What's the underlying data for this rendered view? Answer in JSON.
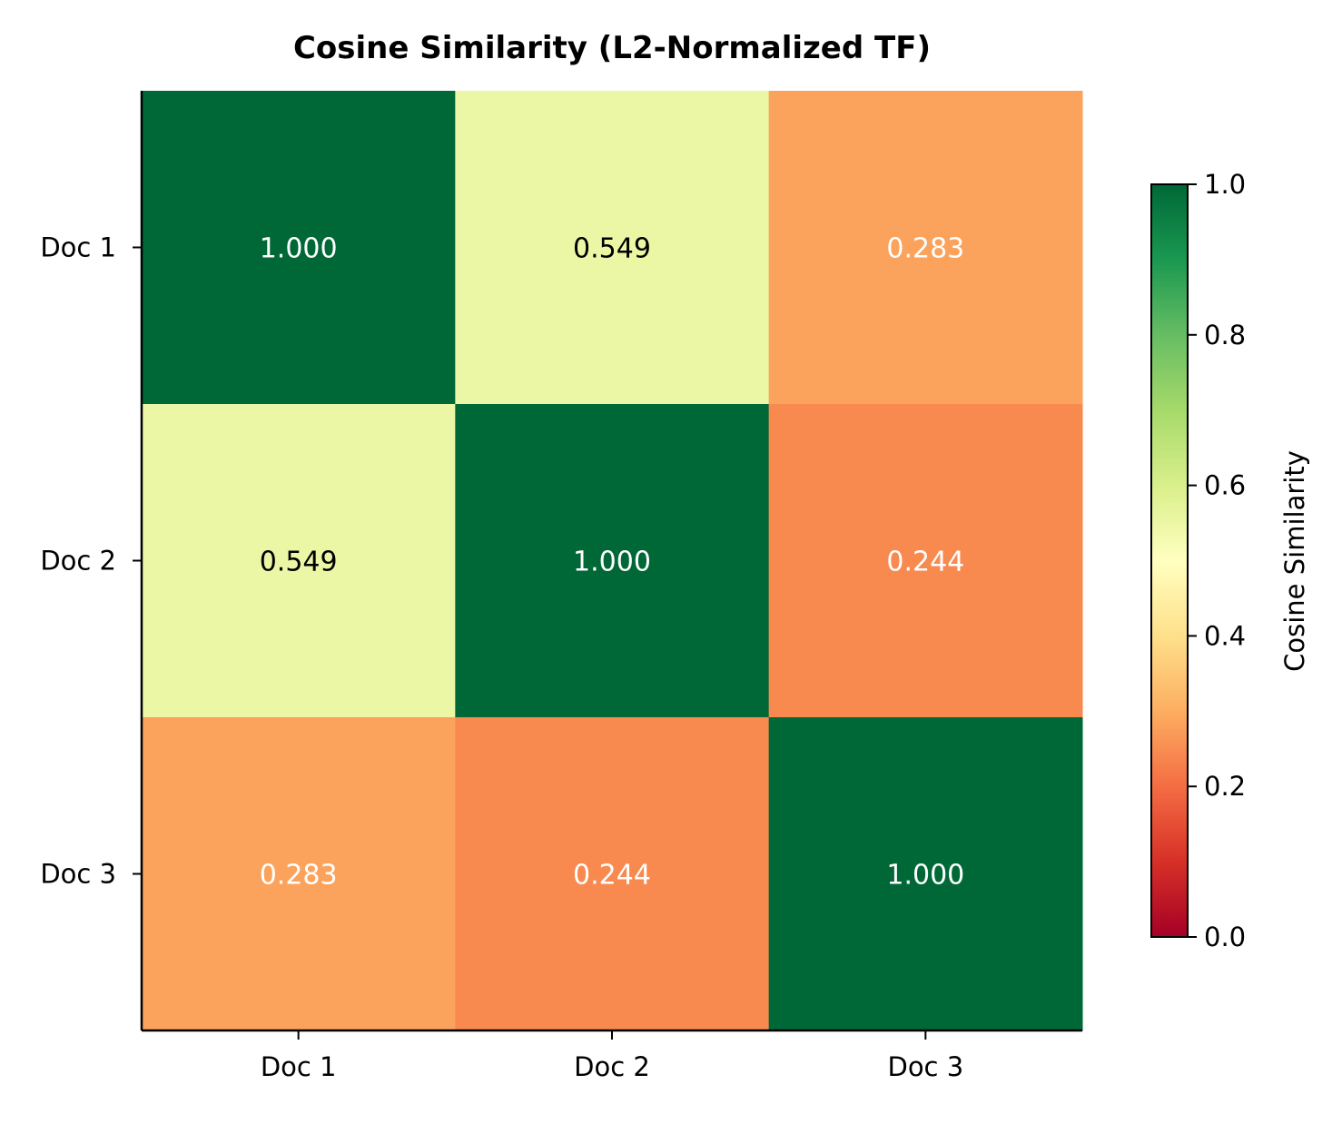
{
  "chart_data": {
    "type": "heatmap",
    "title": "Cosine Similarity (L2-Normalized TF)",
    "x_categories": [
      "Doc 1",
      "Doc 2",
      "Doc 3"
    ],
    "y_categories": [
      "Doc 1",
      "Doc 2",
      "Doc 3"
    ],
    "values": [
      [
        1.0,
        0.549,
        0.283
      ],
      [
        0.549,
        1.0,
        0.244
      ],
      [
        0.283,
        0.244,
        1.0
      ]
    ],
    "cell_labels": [
      [
        "1.000",
        "0.549",
        "0.283"
      ],
      [
        "0.549",
        "1.000",
        "0.244"
      ],
      [
        "0.283",
        "0.244",
        "1.000"
      ]
    ],
    "colormap": "RdYlGn",
    "vmin": 0.0,
    "vmax": 1.0,
    "colorbar": {
      "label": "Cosine Similarity",
      "ticks": [
        0.0,
        0.2,
        0.4,
        0.6,
        0.8,
        1.0
      ],
      "tick_labels": [
        "0.0",
        "0.2",
        "0.4",
        "0.6",
        "0.8",
        "1.0"
      ]
    },
    "colormap_stops": [
      "#a50026",
      "#d73027",
      "#f46d43",
      "#fdae61",
      "#fee08b",
      "#ffffbf",
      "#d9ef8b",
      "#a6d96a",
      "#66bd63",
      "#1a9850",
      "#006837"
    ]
  }
}
